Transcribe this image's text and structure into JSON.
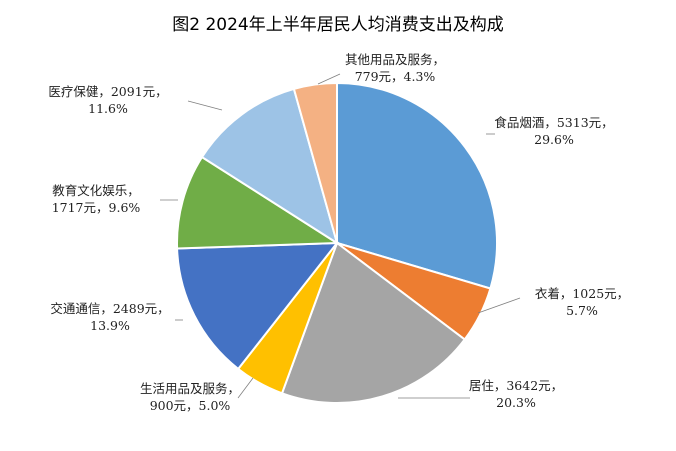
{
  "chart_data": {
    "type": "pie",
    "title": "图2 2024年上半年居民人均消费支出及构成",
    "start_angle_deg": 0,
    "direction": "clockwise",
    "slices": [
      {
        "name": "食品烟酒",
        "value": 5313,
        "label1": "食品烟酒，5313元，",
        "label2": "29.6%",
        "color": "#5B9BD5"
      },
      {
        "name": "衣着",
        "value": 1025,
        "label1": "衣着，1025元，",
        "label2": "5.7%",
        "color": "#ED7D31"
      },
      {
        "name": "居住",
        "value": 3642,
        "label1": "居住，3642元，",
        "label2": "20.3%",
        "color": "#A5A5A5"
      },
      {
        "name": "生活用品及服务",
        "value": 900,
        "label1": "生活用品及服务，",
        "label2": "900元，5.0%",
        "color": "#FFC000"
      },
      {
        "name": "交通通信",
        "value": 2489,
        "label1": "交通通信，2489元，",
        "label2": "13.9%",
        "color": "#4472C4"
      },
      {
        "name": "教育文化娱乐",
        "value": 1717,
        "label1": "教育文化娱乐，",
        "label2": "1717元，9.6%",
        "color": "#70AD47"
      },
      {
        "name": "医疗保健",
        "value": 2091,
        "label1": "医疗保健，2091元，",
        "label2": "11.6%",
        "color": "#9DC3E6"
      },
      {
        "name": "其他用品及服务",
        "value": 779,
        "label1": "其他用品及服务，",
        "label2": "779元，4.3%",
        "color": "#F4B183"
      }
    ]
  }
}
